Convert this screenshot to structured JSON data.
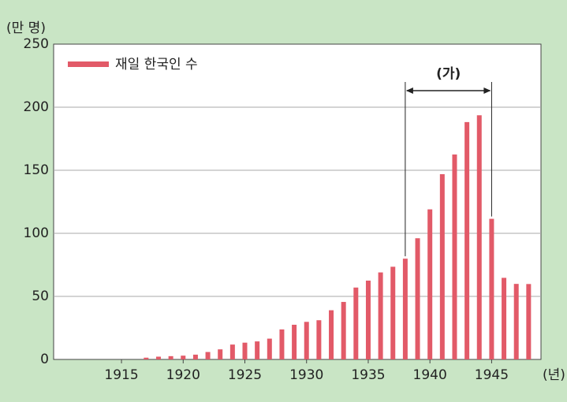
{
  "chart_data": {
    "type": "bar",
    "y_unit": "(만 명)",
    "x_unit": "(년)",
    "series": [
      {
        "name": "재일 한국인 수",
        "color": "#e25a68"
      }
    ],
    "x": [
      1917,
      1918,
      1919,
      1920,
      1921,
      1922,
      1923,
      1924,
      1925,
      1926,
      1927,
      1928,
      1929,
      1930,
      1931,
      1932,
      1933,
      1934,
      1935,
      1936,
      1937,
      1938,
      1939,
      1940,
      1941,
      1942,
      1943,
      1944,
      1945,
      1946,
      1947,
      1948
    ],
    "values": [
      1.4,
      2.2,
      2.6,
      3,
      3.8,
      5.9,
      8,
      11.8,
      13.3,
      14.3,
      16.5,
      23.8,
      27.5,
      29.8,
      31.1,
      39,
      45.6,
      57,
      62.5,
      69,
      73.5,
      79.9,
      96.1,
      119,
      146.9,
      162.5,
      188.2,
      193.6,
      111.5,
      64.7,
      59.9,
      59.8
    ],
    "xlim": [
      1909.5,
      1949
    ],
    "xticks": [
      1915,
      1920,
      1925,
      1930,
      1935,
      1940,
      1945
    ],
    "ylim": [
      0,
      250
    ],
    "yticks": [
      0,
      50,
      100,
      150,
      200,
      250
    ],
    "grid": true,
    "annotation": {
      "text": "(가)",
      "x_range": [
        1938,
        1945
      ]
    }
  }
}
